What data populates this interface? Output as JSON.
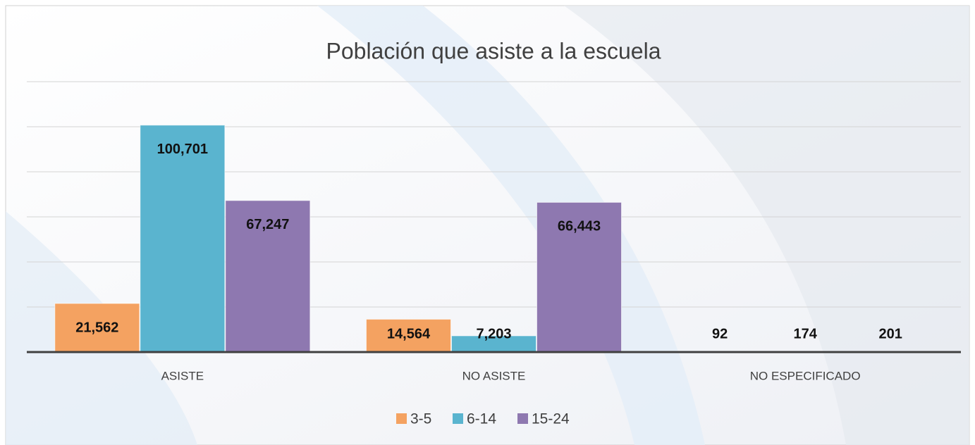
{
  "chart_data": {
    "type": "bar",
    "title": "Población que asiste a la escuela",
    "categories": [
      "ASISTE",
      "NO ASISTE",
      "NO ESPECIFICADO"
    ],
    "series": [
      {
        "name": "3-5",
        "color": "#f4a261",
        "values": [
          21562,
          14564,
          92
        ],
        "value_labels": [
          "21,562",
          "14,564",
          "92"
        ]
      },
      {
        "name": "6-14",
        "color": "#5ab4cf",
        "values": [
          100701,
          7203,
          174
        ],
        "value_labels": [
          "100,701",
          "7,203",
          "174"
        ]
      },
      {
        "name": "15-24",
        "color": "#8e78b0",
        "values": [
          67247,
          66443,
          201
        ],
        "value_labels": [
          "67,247",
          "66,443",
          "201"
        ]
      }
    ],
    "ylim": [
      0,
      120000
    ],
    "yticks": [
      0,
      20000,
      40000,
      60000,
      80000,
      100000,
      120000
    ],
    "grid": true,
    "legend": "bottom"
  }
}
